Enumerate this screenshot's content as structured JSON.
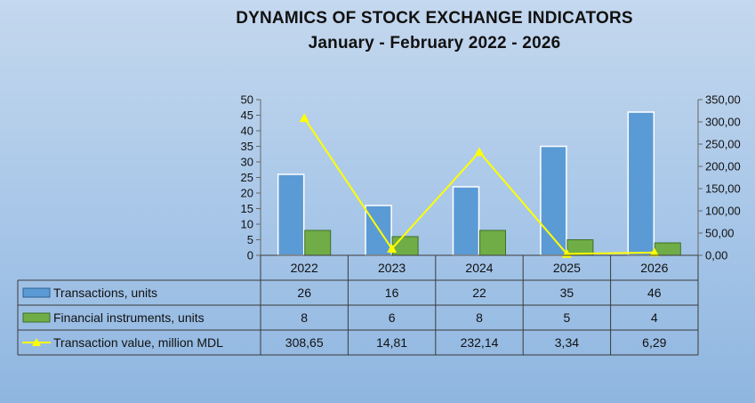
{
  "chart_data": {
    "type": "bar",
    "title": "DYNAMICS OF STOCK EXCHANGE INDICATORS",
    "subtitle": "January  -  February 2022 - 2026",
    "categories": [
      "2022",
      "2023",
      "2024",
      "2025",
      "2026"
    ],
    "series": [
      {
        "name": "Transactions, units",
        "type": "bar",
        "axis": "left",
        "color": "#5b9bd5",
        "values": [
          26,
          16,
          22,
          35,
          46
        ],
        "labels": [
          "26",
          "16",
          "22",
          "35",
          "46"
        ]
      },
      {
        "name": "Financial instruments, units",
        "type": "bar",
        "axis": "left",
        "color": "#70ad47",
        "values": [
          8,
          6,
          8,
          5,
          4
        ],
        "labels": [
          "8",
          "6",
          "8",
          "5",
          "4"
        ]
      },
      {
        "name": "Transaction value, million MDL",
        "type": "line",
        "axis": "right",
        "color": "#ffff00",
        "values": [
          308.65,
          14.81,
          232.14,
          3.34,
          6.29
        ],
        "labels": [
          "308,65",
          "14,81",
          "232,14",
          "3,34",
          "6,29"
        ]
      }
    ],
    "y_left": {
      "min": 0,
      "max": 50,
      "step": 5,
      "tick_labels": [
        "0",
        "5",
        "10",
        "15",
        "20",
        "25",
        "30",
        "35",
        "40",
        "45",
        "50"
      ]
    },
    "y_right": {
      "min": 0,
      "max": 350,
      "step": 50,
      "tick_labels": [
        "0,00",
        "50,00",
        "100,00",
        "150,00",
        "200,00",
        "250,00",
        "300,00",
        "350,00"
      ]
    },
    "data_table": true,
    "legend": "in data table"
  }
}
